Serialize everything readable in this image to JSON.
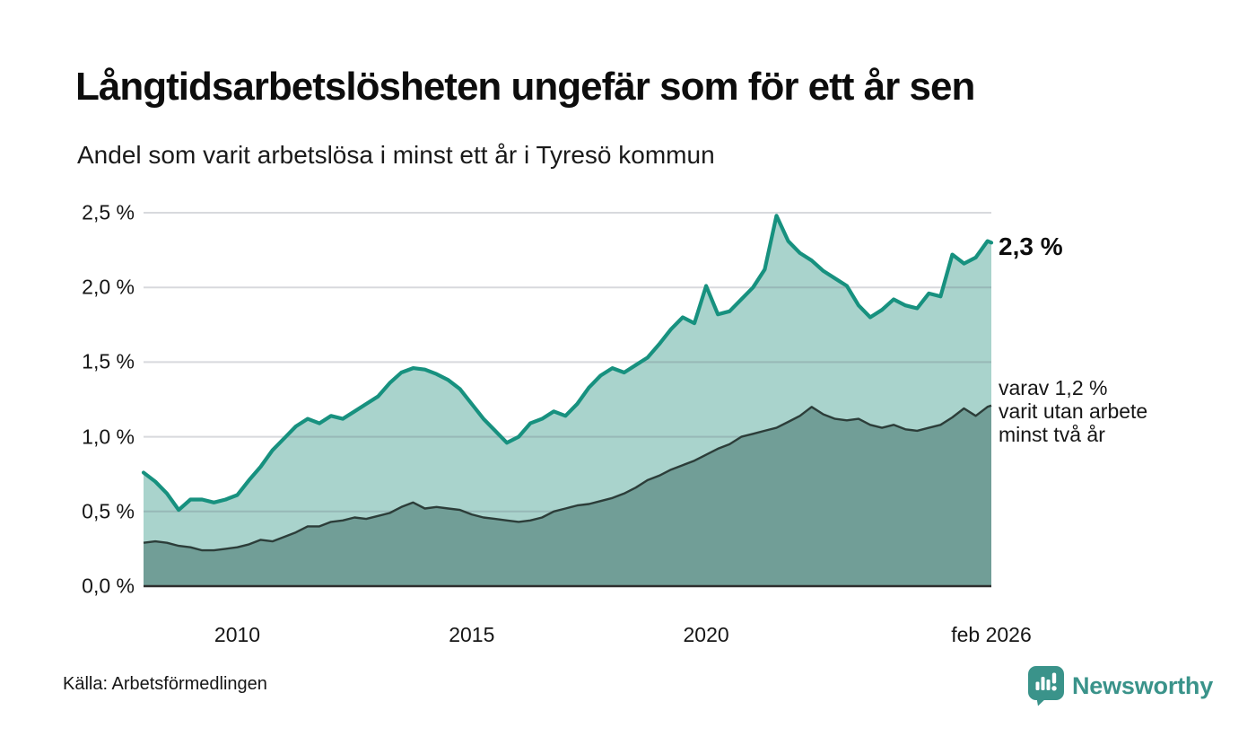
{
  "header": {
    "title": "Långtidsarbetslösheten ungefär som för ett år sen",
    "subtitle": "Andel som varit arbetslösa i minst ett år i Tyresö kommun"
  },
  "chart_data": {
    "type": "area",
    "title": "Långtidsarbetslösheten ungefär som för ett år sen",
    "subtitle": "Andel som varit arbetslösa i minst ett år i Tyresö kommun",
    "xlabel": "",
    "ylabel": "",
    "x_range": [
      2008,
      2026.083
    ],
    "ylim": [
      0,
      2.5
    ],
    "grid": true,
    "legend_position": "none",
    "y_ticks": [
      {
        "value": 2.5,
        "label": "2,5 %"
      },
      {
        "value": 2.0,
        "label": "2,0 %"
      },
      {
        "value": 1.5,
        "label": "1,5 %"
      },
      {
        "value": 1.0,
        "label": "1,0 %"
      },
      {
        "value": 0.5,
        "label": "0,5 %"
      },
      {
        "value": 0.0,
        "label": "0,0 %"
      }
    ],
    "x_ticks": [
      {
        "value": 2010,
        "label": "2010"
      },
      {
        "value": 2015,
        "label": "2015"
      },
      {
        "value": 2020,
        "label": "2020"
      },
      {
        "value": 2026.083,
        "label": "feb 2026"
      }
    ],
    "x": [
      2008,
      2008.25,
      2008.5,
      2008.75,
      2009,
      2009.25,
      2009.5,
      2009.75,
      2010,
      2010.25,
      2010.5,
      2010.75,
      2011,
      2011.25,
      2011.5,
      2011.75,
      2012,
      2012.25,
      2012.5,
      2012.75,
      2013,
      2013.25,
      2013.5,
      2013.75,
      2014,
      2014.25,
      2014.5,
      2014.75,
      2015,
      2015.25,
      2015.5,
      2015.75,
      2016,
      2016.25,
      2016.5,
      2016.75,
      2017,
      2017.25,
      2017.5,
      2017.75,
      2018,
      2018.25,
      2018.5,
      2018.75,
      2019,
      2019.25,
      2019.5,
      2019.75,
      2020,
      2020.25,
      2020.5,
      2020.75,
      2021,
      2021.25,
      2021.5,
      2021.75,
      2022,
      2022.25,
      2022.5,
      2022.75,
      2023,
      2023.25,
      2023.5,
      2023.75,
      2024,
      2024.25,
      2024.5,
      2024.75,
      2025,
      2025.25,
      2025.5,
      2025.75,
      2026,
      2026.083
    ],
    "series": [
      {
        "name": "Andel arbetslösa minst ett år",
        "line_color": "#17917F",
        "fill_color": "#A9D3CC",
        "values": [
          0.76,
          0.7,
          0.62,
          0.51,
          0.58,
          0.58,
          0.56,
          0.58,
          0.61,
          0.71,
          0.8,
          0.91,
          0.99,
          1.07,
          1.12,
          1.09,
          1.14,
          1.12,
          1.17,
          1.22,
          1.27,
          1.36,
          1.43,
          1.46,
          1.45,
          1.42,
          1.38,
          1.32,
          1.22,
          1.12,
          1.04,
          0.96,
          1.0,
          1.09,
          1.12,
          1.17,
          1.14,
          1.22,
          1.33,
          1.41,
          1.46,
          1.43,
          1.48,
          1.53,
          1.62,
          1.72,
          1.8,
          1.76,
          2.01,
          1.82,
          1.84,
          1.92,
          2.0,
          2.12,
          2.48,
          2.31,
          2.23,
          2.18,
          2.11,
          2.06,
          2.01,
          1.88,
          1.8,
          1.85,
          1.92,
          1.88,
          1.86,
          1.96,
          1.94,
          2.22,
          2.16,
          2.2,
          2.31,
          2.3
        ]
      },
      {
        "name": "varav utan arbete minst två år",
        "line_color": "#2C3D39",
        "fill_color": "#719E97",
        "values": [
          0.29,
          0.3,
          0.29,
          0.27,
          0.26,
          0.24,
          0.24,
          0.25,
          0.26,
          0.28,
          0.31,
          0.3,
          0.33,
          0.36,
          0.4,
          0.4,
          0.43,
          0.44,
          0.46,
          0.45,
          0.47,
          0.49,
          0.53,
          0.56,
          0.52,
          0.53,
          0.52,
          0.51,
          0.48,
          0.46,
          0.45,
          0.44,
          0.43,
          0.44,
          0.46,
          0.5,
          0.52,
          0.54,
          0.55,
          0.57,
          0.59,
          0.62,
          0.66,
          0.71,
          0.74,
          0.78,
          0.81,
          0.84,
          0.88,
          0.92,
          0.95,
          1.0,
          1.02,
          1.04,
          1.06,
          1.1,
          1.14,
          1.2,
          1.15,
          1.12,
          1.11,
          1.12,
          1.08,
          1.06,
          1.08,
          1.05,
          1.04,
          1.06,
          1.08,
          1.13,
          1.19,
          1.14,
          1.2,
          1.21
        ]
      }
    ],
    "annotations": {
      "latest_value": "2,3 %",
      "secondary": "varav 1,2 %\nvarit utan arbete\nminst två år"
    }
  },
  "footer": {
    "source": "Källa: Arbetsförmedlingen",
    "brand": "Newsworthy",
    "brand_icon": "bar-chart-bubble-icon"
  },
  "colors": {
    "accent_teal": "#17917F",
    "light_area": "#A9D3CC",
    "dark_area": "#719E97",
    "dark_line": "#2C3D39",
    "baseline": "#2E2E2E",
    "gridline": "#DEDEE2",
    "brand_teal": "#3A938A"
  }
}
